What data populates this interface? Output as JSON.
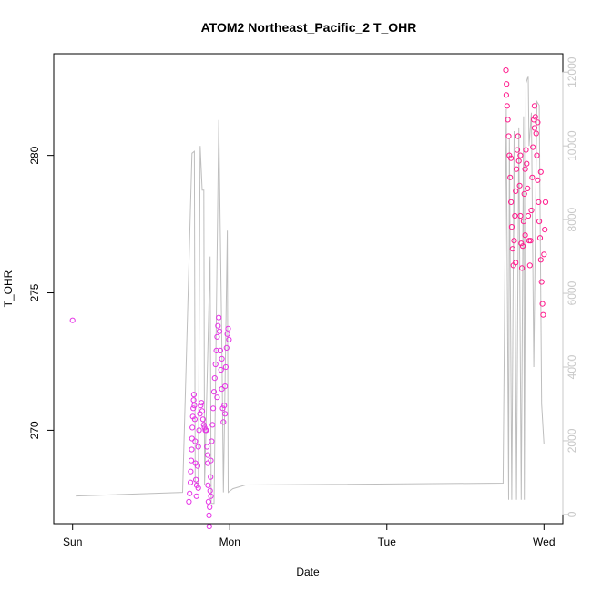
{
  "chart_data": {
    "type": "scatter",
    "title": "ATOM2 Northeast_Pacific_2 T_OHR",
    "xlabel": "Date",
    "ylabel": "T_OHR",
    "x_ticks": [
      {
        "value": 0,
        "label": "Sun"
      },
      {
        "value": 1,
        "label": "Mon"
      },
      {
        "value": 2,
        "label": "Tue"
      },
      {
        "value": 3,
        "label": "Wed"
      }
    ],
    "y_ticks": [
      270,
      275,
      280
    ],
    "y_right_ticks": [
      0,
      2000,
      4000,
      6000,
      8000,
      10000,
      12000
    ],
    "xlim": [
      -0.12,
      3.12
    ],
    "ylim": [
      266.6,
      283.7
    ],
    "y_right_lim": [
      -250,
      12500
    ],
    "colors": {
      "points_left": "#e633e6",
      "points_right": "#ff1a8c",
      "altitude_line": "#bebebe",
      "right_axis": "#c8c8c8"
    },
    "series": [
      {
        "name": "T_OHR",
        "points": [
          [
            0.0,
            274.0
          ],
          [
            0.74,
            267.4
          ],
          [
            0.745,
            267.7
          ],
          [
            0.75,
            268.1
          ],
          [
            0.752,
            268.5
          ],
          [
            0.755,
            268.9
          ],
          [
            0.758,
            269.3
          ],
          [
            0.76,
            269.7
          ],
          [
            0.762,
            270.1
          ],
          [
            0.765,
            270.5
          ],
          [
            0.768,
            270.8
          ],
          [
            0.77,
            271.1
          ],
          [
            0.772,
            271.3
          ],
          [
            0.775,
            270.9
          ],
          [
            0.778,
            270.4
          ],
          [
            0.78,
            269.6
          ],
          [
            0.782,
            268.8
          ],
          [
            0.785,
            268.2
          ],
          [
            0.788,
            267.6
          ],
          [
            0.79,
            268.0
          ],
          [
            0.795,
            268.7
          ],
          [
            0.8,
            269.4
          ],
          [
            0.805,
            270.0
          ],
          [
            0.81,
            270.6
          ],
          [
            0.815,
            270.9
          ],
          [
            0.82,
            271.0
          ],
          [
            0.825,
            270.7
          ],
          [
            0.83,
            270.4
          ],
          [
            0.835,
            270.2
          ],
          [
            0.84,
            270.1
          ],
          [
            0.845,
            270.0
          ],
          [
            0.85,
            270.0
          ],
          [
            0.855,
            269.4
          ],
          [
            0.86,
            268.8
          ],
          [
            0.862,
            268.0
          ],
          [
            0.865,
            267.4
          ],
          [
            0.868,
            266.9
          ],
          [
            0.87,
            266.5
          ],
          [
            0.872,
            267.2
          ],
          [
            0.875,
            267.8
          ],
          [
            0.878,
            268.3
          ],
          [
            0.88,
            268.9
          ],
          [
            0.885,
            269.6
          ],
          [
            0.89,
            270.2
          ],
          [
            0.895,
            270.8
          ],
          [
            0.9,
            271.4
          ],
          [
            0.905,
            271.9
          ],
          [
            0.91,
            272.4
          ],
          [
            0.915,
            272.9
          ],
          [
            0.92,
            273.4
          ],
          [
            0.925,
            273.8
          ],
          [
            0.93,
            274.1
          ],
          [
            0.935,
            273.6
          ],
          [
            0.94,
            272.9
          ],
          [
            0.945,
            272.2
          ],
          [
            0.95,
            271.5
          ],
          [
            0.955,
            270.8
          ],
          [
            0.96,
            270.3
          ],
          [
            0.965,
            270.9
          ],
          [
            0.97,
            271.6
          ],
          [
            0.975,
            272.3
          ],
          [
            0.98,
            273.0
          ],
          [
            0.985,
            273.5
          ],
          [
            0.99,
            273.7
          ],
          [
            0.995,
            273.3
          ],
          [
            0.8,
            267.9
          ],
          [
            0.86,
            269.1
          ],
          [
            0.88,
            267.6
          ],
          [
            0.92,
            271.2
          ],
          [
            0.95,
            272.6
          ],
          [
            0.97,
            270.6
          ],
          [
            2.76,
            282.2
          ],
          [
            2.765,
            281.8
          ],
          [
            2.77,
            281.3
          ],
          [
            2.775,
            280.7
          ],
          [
            2.78,
            280.0
          ],
          [
            2.785,
            279.2
          ],
          [
            2.79,
            278.3
          ],
          [
            2.795,
            277.4
          ],
          [
            2.8,
            276.6
          ],
          [
            2.805,
            276.0
          ],
          [
            2.81,
            276.9
          ],
          [
            2.815,
            277.8
          ],
          [
            2.82,
            278.7
          ],
          [
            2.825,
            279.5
          ],
          [
            2.83,
            280.2
          ],
          [
            2.835,
            280.7
          ],
          [
            2.84,
            279.8
          ],
          [
            2.845,
            278.9
          ],
          [
            2.85,
            277.8
          ],
          [
            2.855,
            276.8
          ],
          [
            2.86,
            275.9
          ],
          [
            2.865,
            276.7
          ],
          [
            2.87,
            277.6
          ],
          [
            2.875,
            278.6
          ],
          [
            2.88,
            279.5
          ],
          [
            2.885,
            280.2
          ],
          [
            2.89,
            279.7
          ],
          [
            2.895,
            278.8
          ],
          [
            2.9,
            277.8
          ],
          [
            2.905,
            276.9
          ],
          [
            2.91,
            276.0
          ],
          [
            2.915,
            276.9
          ],
          [
            2.92,
            278.0
          ],
          [
            2.925,
            279.2
          ],
          [
            2.93,
            280.3
          ],
          [
            2.935,
            281.3
          ],
          [
            2.94,
            281.8
          ],
          [
            2.945,
            281.4
          ],
          [
            2.95,
            280.8
          ],
          [
            2.955,
            280.0
          ],
          [
            2.96,
            279.1
          ],
          [
            2.965,
            278.3
          ],
          [
            2.97,
            277.6
          ],
          [
            2.975,
            277.0
          ],
          [
            2.98,
            276.2
          ],
          [
            2.985,
            275.4
          ],
          [
            2.99,
            274.6
          ],
          [
            2.995,
            274.2
          ],
          [
            3.0,
            276.4
          ],
          [
            3.005,
            277.3
          ],
          [
            3.01,
            278.3
          ],
          [
            2.758,
            283.1
          ],
          [
            2.762,
            282.6
          ],
          [
            2.79,
            279.9
          ],
          [
            2.82,
            276.1
          ],
          [
            2.85,
            280.0
          ],
          [
            2.88,
            277.1
          ],
          [
            2.94,
            281.0
          ],
          [
            2.96,
            281.2
          ],
          [
            2.98,
            279.4
          ]
        ]
      },
      {
        "name": "altitude",
        "points": [
          [
            0.02,
            500
          ],
          [
            0.7,
            600
          ],
          [
            0.76,
            9800
          ],
          [
            0.775,
            9850
          ],
          [
            0.78,
            900
          ],
          [
            0.8,
            800
          ],
          [
            0.812,
            10000
          ],
          [
            0.825,
            8800
          ],
          [
            0.835,
            8800
          ],
          [
            0.84,
            800
          ],
          [
            0.875,
            7000
          ],
          [
            0.882,
            300
          ],
          [
            0.9,
            300
          ],
          [
            0.93,
            10700
          ],
          [
            0.95,
            4600
          ],
          [
            0.96,
            600
          ],
          [
            0.985,
            7700
          ],
          [
            0.99,
            600
          ],
          [
            1.02,
            700
          ],
          [
            1.1,
            800
          ],
          [
            2.74,
            850
          ],
          [
            2.76,
            11000
          ],
          [
            2.775,
            400
          ],
          [
            2.78,
            10200
          ],
          [
            2.795,
            400
          ],
          [
            2.81,
            10400
          ],
          [
            2.825,
            400
          ],
          [
            2.84,
            10500
          ],
          [
            2.855,
            400
          ],
          [
            2.87,
            10800
          ],
          [
            2.875,
            400
          ],
          [
            2.885,
            11700
          ],
          [
            2.9,
            11900
          ],
          [
            2.905,
            10000
          ],
          [
            2.92,
            10900
          ],
          [
            2.935,
            4000
          ],
          [
            2.955,
            11200
          ],
          [
            2.97,
            11100
          ],
          [
            2.985,
            3000
          ],
          [
            3.0,
            1900
          ]
        ]
      }
    ]
  }
}
